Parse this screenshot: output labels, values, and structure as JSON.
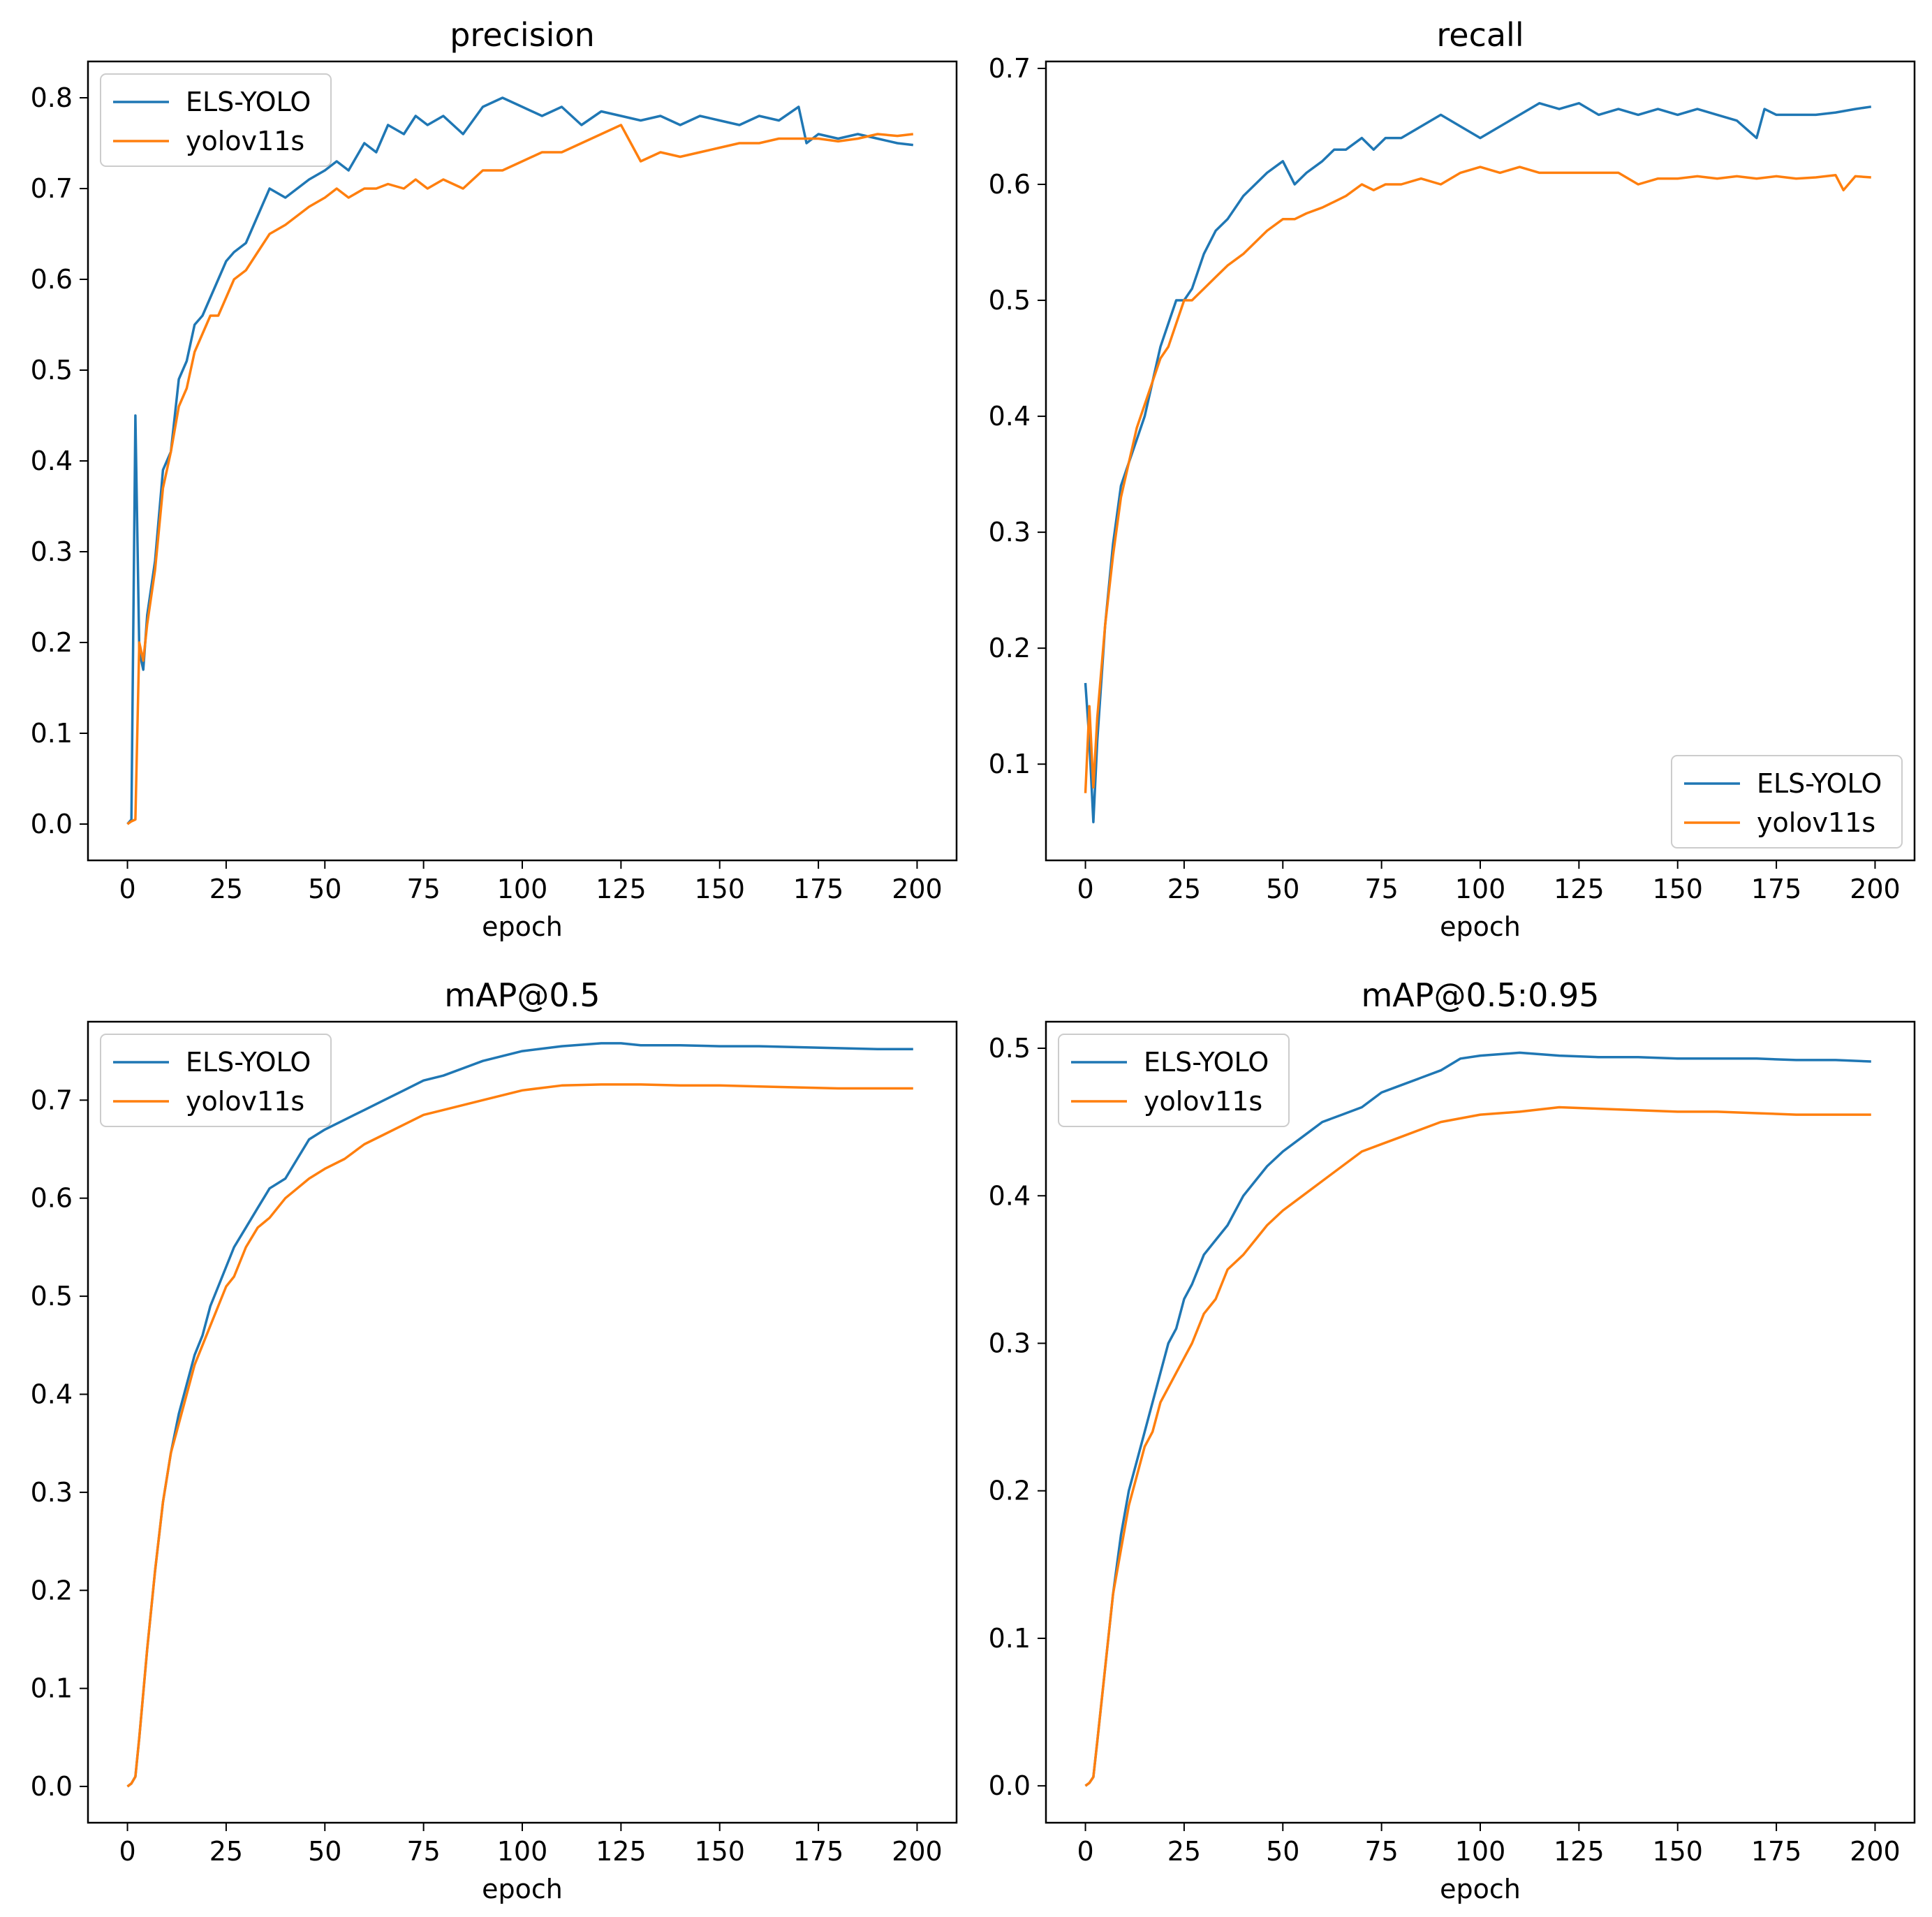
{
  "figure": {
    "colors": {
      "ELS-YOLO": "#1f77b4",
      "yolov11s": "#ff7f0e",
      "axis": "#000000",
      "legend_border": "#cccccc"
    }
  },
  "chart_data": [
    {
      "type": "line",
      "title": "precision",
      "xlabel": "epoch",
      "ylabel": "",
      "xlim": [
        -10,
        210
      ],
      "ylim": [
        -0.04,
        0.84
      ],
      "xticks": [
        0,
        25,
        50,
        75,
        100,
        125,
        150,
        175,
        200
      ],
      "xtick_labels": [
        "0",
        "25",
        "50",
        "75",
        "100",
        "125",
        "150",
        "175",
        "200"
      ],
      "yticks": [
        0.0,
        0.1,
        0.2,
        0.3,
        0.4,
        0.5,
        0.6,
        0.7,
        0.8
      ],
      "ytick_labels": [
        "0.0",
        "0.1",
        "0.2",
        "0.3",
        "0.4",
        "0.5",
        "0.6",
        "0.7",
        "0.8"
      ],
      "grid": false,
      "legend": {
        "position": "upper-left",
        "entries": [
          "ELS-YOLO",
          "yolov11s"
        ]
      },
      "series": [
        {
          "name": "ELS-YOLO",
          "color": "#1f77b4",
          "x": [
            0,
            1,
            2,
            3,
            4,
            5,
            7,
            9,
            11,
            13,
            15,
            17,
            19,
            21,
            23,
            25,
            27,
            30,
            33,
            36,
            40,
            43,
            46,
            50,
            53,
            56,
            60,
            63,
            66,
            70,
            73,
            76,
            80,
            85,
            90,
            95,
            100,
            105,
            110,
            115,
            120,
            125,
            130,
            135,
            140,
            145,
            150,
            155,
            160,
            165,
            170,
            172,
            175,
            180,
            185,
            190,
            195,
            199
          ],
          "values": [
            0.0,
            0.005,
            0.45,
            0.19,
            0.17,
            0.23,
            0.29,
            0.39,
            0.41,
            0.49,
            0.51,
            0.55,
            0.56,
            0.58,
            0.6,
            0.62,
            0.63,
            0.64,
            0.67,
            0.7,
            0.69,
            0.7,
            0.71,
            0.72,
            0.73,
            0.72,
            0.75,
            0.74,
            0.77,
            0.76,
            0.78,
            0.77,
            0.78,
            0.76,
            0.79,
            0.8,
            0.79,
            0.78,
            0.79,
            0.77,
            0.785,
            0.78,
            0.775,
            0.78,
            0.77,
            0.78,
            0.775,
            0.77,
            0.78,
            0.775,
            0.79,
            0.75,
            0.76,
            0.755,
            0.76,
            0.755,
            0.75,
            0.748
          ]
        },
        {
          "name": "yolov11s",
          "color": "#ff7f0e",
          "x": [
            0,
            1,
            2,
            3,
            4,
            5,
            7,
            9,
            11,
            13,
            15,
            17,
            19,
            21,
            23,
            25,
            27,
            30,
            33,
            36,
            40,
            43,
            46,
            50,
            53,
            56,
            60,
            63,
            66,
            70,
            73,
            76,
            80,
            85,
            90,
            95,
            100,
            105,
            110,
            115,
            120,
            125,
            130,
            135,
            140,
            145,
            150,
            155,
            160,
            165,
            170,
            175,
            180,
            185,
            190,
            195,
            199
          ],
          "values": [
            0.0,
            0.003,
            0.005,
            0.2,
            0.18,
            0.22,
            0.28,
            0.37,
            0.41,
            0.46,
            0.48,
            0.52,
            0.54,
            0.56,
            0.56,
            0.58,
            0.6,
            0.61,
            0.63,
            0.65,
            0.66,
            0.67,
            0.68,
            0.69,
            0.7,
            0.69,
            0.7,
            0.7,
            0.705,
            0.7,
            0.71,
            0.7,
            0.71,
            0.7,
            0.72,
            0.72,
            0.73,
            0.74,
            0.74,
            0.75,
            0.76,
            0.77,
            0.73,
            0.74,
            0.735,
            0.74,
            0.745,
            0.75,
            0.75,
            0.755,
            0.755,
            0.755,
            0.752,
            0.755,
            0.76,
            0.758,
            0.76
          ]
        }
      ]
    },
    {
      "type": "line",
      "title": "recall",
      "xlabel": "epoch",
      "ylabel": "",
      "xlim": [
        -10,
        210
      ],
      "ylim": [
        0.017,
        0.706
      ],
      "xticks": [
        0,
        25,
        50,
        75,
        100,
        125,
        150,
        175,
        200
      ],
      "xtick_labels": [
        "0",
        "25",
        "50",
        "75",
        "100",
        "125",
        "150",
        "175",
        "200"
      ],
      "yticks": [
        0.1,
        0.2,
        0.3,
        0.4,
        0.5,
        0.6,
        0.7
      ],
      "ytick_labels": [
        "0.1",
        "0.2",
        "0.3",
        "0.4",
        "0.5",
        "0.6",
        "0.7"
      ],
      "grid": false,
      "legend": {
        "position": "lower-right",
        "entries": [
          "ELS-YOLO",
          "yolov11s"
        ]
      },
      "series": [
        {
          "name": "ELS-YOLO",
          "color": "#1f77b4",
          "x": [
            0,
            1,
            2,
            3,
            5,
            7,
            9,
            11,
            13,
            15,
            17,
            19,
            21,
            23,
            25,
            27,
            30,
            33,
            36,
            40,
            43,
            46,
            50,
            53,
            56,
            60,
            63,
            66,
            70,
            73,
            76,
            80,
            85,
            90,
            95,
            100,
            105,
            110,
            115,
            120,
            125,
            130,
            135,
            140,
            145,
            150,
            155,
            160,
            165,
            170,
            172,
            175,
            180,
            185,
            190,
            195,
            199
          ],
          "values": [
            0.17,
            0.12,
            0.05,
            0.12,
            0.22,
            0.29,
            0.34,
            0.36,
            0.38,
            0.4,
            0.43,
            0.46,
            0.48,
            0.5,
            0.5,
            0.51,
            0.54,
            0.56,
            0.57,
            0.59,
            0.6,
            0.61,
            0.62,
            0.6,
            0.61,
            0.62,
            0.63,
            0.63,
            0.64,
            0.63,
            0.64,
            0.64,
            0.65,
            0.66,
            0.65,
            0.64,
            0.65,
            0.66,
            0.67,
            0.665,
            0.67,
            0.66,
            0.665,
            0.66,
            0.665,
            0.66,
            0.665,
            0.66,
            0.655,
            0.64,
            0.665,
            0.66,
            0.66,
            0.66,
            0.662,
            0.665,
            0.667
          ]
        },
        {
          "name": "yolov11s",
          "color": "#ff7f0e",
          "x": [
            0,
            1,
            2,
            3,
            5,
            7,
            9,
            11,
            13,
            15,
            17,
            19,
            21,
            23,
            25,
            27,
            30,
            33,
            36,
            40,
            43,
            46,
            50,
            53,
            56,
            60,
            63,
            66,
            70,
            73,
            76,
            80,
            85,
            90,
            95,
            100,
            105,
            110,
            115,
            120,
            125,
            130,
            135,
            140,
            145,
            150,
            155,
            160,
            165,
            170,
            175,
            180,
            185,
            190,
            192,
            195,
            199
          ],
          "values": [
            0.075,
            0.15,
            0.08,
            0.14,
            0.22,
            0.28,
            0.33,
            0.36,
            0.39,
            0.41,
            0.43,
            0.45,
            0.46,
            0.48,
            0.5,
            0.5,
            0.51,
            0.52,
            0.53,
            0.54,
            0.55,
            0.56,
            0.57,
            0.57,
            0.575,
            0.58,
            0.585,
            0.59,
            0.6,
            0.595,
            0.6,
            0.6,
            0.605,
            0.6,
            0.61,
            0.615,
            0.61,
            0.615,
            0.61,
            0.61,
            0.61,
            0.61,
            0.61,
            0.6,
            0.605,
            0.605,
            0.607,
            0.605,
            0.607,
            0.605,
            0.607,
            0.605,
            0.606,
            0.608,
            0.595,
            0.607,
            0.606
          ]
        }
      ]
    },
    {
      "type": "line",
      "title": "mAP@0.5",
      "xlabel": "epoch",
      "ylabel": "",
      "xlim": [
        -10,
        210
      ],
      "ylim": [
        -0.037,
        0.78
      ],
      "xticks": [
        0,
        25,
        50,
        75,
        100,
        125,
        150,
        175,
        200
      ],
      "xtick_labels": [
        "0",
        "25",
        "50",
        "75",
        "100",
        "125",
        "150",
        "175",
        "200"
      ],
      "yticks": [
        0.0,
        0.1,
        0.2,
        0.3,
        0.4,
        0.5,
        0.6,
        0.7
      ],
      "ytick_labels": [
        "0.0",
        "0.1",
        "0.2",
        "0.3",
        "0.4",
        "0.5",
        "0.6",
        "0.7"
      ],
      "grid": false,
      "legend": {
        "position": "upper-left",
        "entries": [
          "ELS-YOLO",
          "yolov11s"
        ]
      },
      "series": [
        {
          "name": "ELS-YOLO",
          "color": "#1f77b4",
          "x": [
            0,
            1,
            2,
            3,
            5,
            7,
            9,
            11,
            13,
            15,
            17,
            19,
            21,
            23,
            25,
            27,
            30,
            33,
            36,
            40,
            43,
            46,
            50,
            55,
            60,
            65,
            70,
            75,
            80,
            90,
            100,
            110,
            120,
            125,
            130,
            140,
            150,
            160,
            170,
            180,
            190,
            199
          ],
          "values": [
            0.0,
            0.003,
            0.01,
            0.05,
            0.14,
            0.22,
            0.29,
            0.34,
            0.38,
            0.41,
            0.44,
            0.46,
            0.49,
            0.51,
            0.53,
            0.55,
            0.57,
            0.59,
            0.61,
            0.62,
            0.64,
            0.66,
            0.67,
            0.68,
            0.69,
            0.7,
            0.71,
            0.72,
            0.725,
            0.74,
            0.75,
            0.755,
            0.758,
            0.758,
            0.756,
            0.756,
            0.755,
            0.755,
            0.754,
            0.753,
            0.752,
            0.752
          ]
        },
        {
          "name": "yolov11s",
          "color": "#ff7f0e",
          "x": [
            0,
            1,
            2,
            3,
            5,
            7,
            9,
            11,
            13,
            15,
            17,
            19,
            21,
            23,
            25,
            27,
            30,
            33,
            36,
            40,
            43,
            46,
            50,
            55,
            60,
            65,
            70,
            75,
            80,
            90,
            100,
            110,
            120,
            130,
            140,
            150,
            160,
            170,
            180,
            190,
            199
          ],
          "values": [
            0.0,
            0.003,
            0.01,
            0.05,
            0.14,
            0.22,
            0.29,
            0.34,
            0.37,
            0.4,
            0.43,
            0.45,
            0.47,
            0.49,
            0.51,
            0.52,
            0.55,
            0.57,
            0.58,
            0.6,
            0.61,
            0.62,
            0.63,
            0.64,
            0.655,
            0.665,
            0.675,
            0.685,
            0.69,
            0.7,
            0.71,
            0.715,
            0.716,
            0.716,
            0.715,
            0.715,
            0.714,
            0.713,
            0.712,
            0.712,
            0.712
          ]
        }
      ]
    },
    {
      "type": "line",
      "title": "mAP@0.5:0.95",
      "xlabel": "epoch",
      "ylabel": "",
      "xlim": [
        -10,
        210
      ],
      "ylim": [
        -0.025,
        0.518
      ],
      "xticks": [
        0,
        25,
        50,
        75,
        100,
        125,
        150,
        175,
        200
      ],
      "xtick_labels": [
        "0",
        "25",
        "50",
        "75",
        "100",
        "125",
        "150",
        "175",
        "200"
      ],
      "yticks": [
        0.0,
        0.1,
        0.2,
        0.3,
        0.4,
        0.5
      ],
      "ytick_labels": [
        "0.0",
        "0.1",
        "0.2",
        "0.3",
        "0.4",
        "0.5"
      ],
      "grid": false,
      "legend": {
        "position": "upper-left",
        "entries": [
          "ELS-YOLO",
          "yolov11s"
        ]
      },
      "series": [
        {
          "name": "ELS-YOLO",
          "color": "#1f77b4",
          "x": [
            0,
            1,
            2,
            3,
            5,
            7,
            9,
            11,
            13,
            15,
            17,
            19,
            21,
            23,
            25,
            27,
            30,
            33,
            36,
            40,
            43,
            46,
            50,
            55,
            60,
            65,
            70,
            75,
            80,
            90,
            95,
            100,
            110,
            120,
            130,
            140,
            150,
            160,
            170,
            180,
            190,
            199
          ],
          "values": [
            0.0,
            0.002,
            0.006,
            0.03,
            0.08,
            0.13,
            0.17,
            0.2,
            0.22,
            0.24,
            0.26,
            0.28,
            0.3,
            0.31,
            0.33,
            0.34,
            0.36,
            0.37,
            0.38,
            0.4,
            0.41,
            0.42,
            0.43,
            0.44,
            0.45,
            0.455,
            0.46,
            0.47,
            0.475,
            0.485,
            0.493,
            0.495,
            0.497,
            0.495,
            0.494,
            0.494,
            0.493,
            0.493,
            0.493,
            0.492,
            0.492,
            0.491
          ]
        },
        {
          "name": "yolov11s",
          "color": "#ff7f0e",
          "x": [
            0,
            1,
            2,
            3,
            5,
            7,
            9,
            11,
            13,
            15,
            17,
            19,
            21,
            23,
            25,
            27,
            30,
            33,
            36,
            40,
            43,
            46,
            50,
            55,
            60,
            65,
            70,
            75,
            80,
            90,
            100,
            110,
            120,
            130,
            140,
            150,
            160,
            170,
            180,
            190,
            199
          ],
          "values": [
            0.0,
            0.002,
            0.006,
            0.03,
            0.08,
            0.13,
            0.16,
            0.19,
            0.21,
            0.23,
            0.24,
            0.26,
            0.27,
            0.28,
            0.29,
            0.3,
            0.32,
            0.33,
            0.35,
            0.36,
            0.37,
            0.38,
            0.39,
            0.4,
            0.41,
            0.42,
            0.43,
            0.435,
            0.44,
            0.45,
            0.455,
            0.457,
            0.46,
            0.459,
            0.458,
            0.457,
            0.457,
            0.456,
            0.455,
            0.455,
            0.455
          ]
        }
      ]
    }
  ]
}
